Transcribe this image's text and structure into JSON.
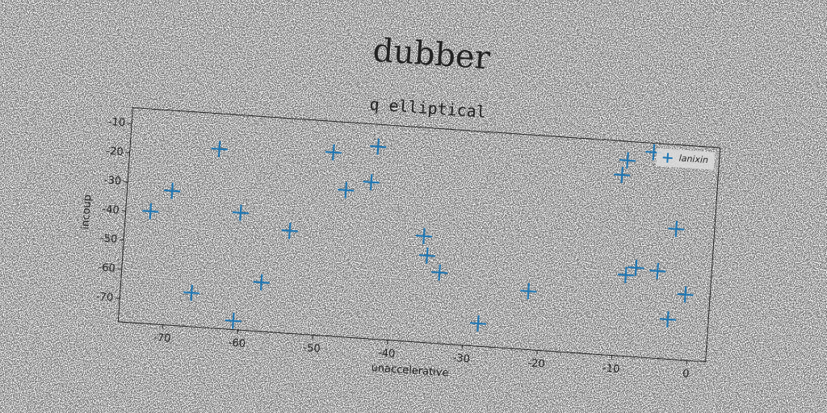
{
  "chart_data": {
    "type": "scatter",
    "title": "dubber",
    "subtitle": "q elliptical",
    "x_label": "unaccelerative",
    "y_label": "incoup",
    "xlim": [
      -76,
      2.5
    ],
    "ylim": [
      -78,
      -4.5
    ],
    "xticks": [
      -70,
      -60,
      -50,
      -40,
      -30,
      -20,
      -10,
      0
    ],
    "yticks": [
      -70,
      -60,
      -50,
      -40,
      -30,
      -20,
      -10
    ],
    "legend": "upper right",
    "series": [
      {
        "name": "lanixin",
        "color": "#1f77b4",
        "x": [
          -72.7,
          -70.0,
          -64.1,
          -66.5,
          -60.7,
          -60.7,
          -57.3,
          -54.0,
          -48.9,
          -46.9,
          -43.6,
          -43.0,
          -36.1,
          -35.5,
          -33.7,
          -28.1,
          -21.7,
          -10.3,
          -9.7,
          -8.9,
          -7.6,
          -6.3,
          -4.7,
          -2.6,
          -2.9,
          -0.8
        ],
        "values": [
          -39.5,
          -32.0,
          -16.6,
          -66.4,
          -37.9,
          -75.0,
          -61.2,
          -42.9,
          -15.1,
          -27.7,
          -24.4,
          -12.1,
          -41.6,
          -48.2,
          -53.7,
          -70.2,
          -58.0,
          -16.1,
          -11.0,
          -50.2,
          -47.5,
          -7.6,
          -48.1,
          -33.3,
          -64.4,
          -55.5
        ]
      }
    ]
  }
}
